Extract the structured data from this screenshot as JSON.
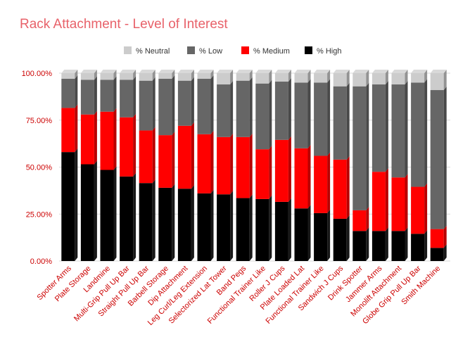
{
  "chart_data": {
    "type": "bar",
    "stacked": true,
    "style": "3d",
    "title": "Rack Attachment - Level of Interest",
    "xlabel": "",
    "ylabel": "",
    "ylim": [
      0,
      100
    ],
    "y_ticks": [
      "0.00%",
      "25.00%",
      "50.00%",
      "75.00%",
      "100.00%"
    ],
    "y_tick_values": [
      0,
      25,
      50,
      75,
      100
    ],
    "legend_position": "top-center",
    "categories": [
      "Spotter Arms",
      "Plate Storage",
      "Landmine",
      "Multi-Grip Pull Up Bar",
      "Straight Pull Up Bar",
      "Barbell Storage",
      "Dip Attachment",
      "Leg Curl/Leg Extension",
      "Selectorized Lat Tower",
      "Band Pegs",
      "Functional Trainer Like",
      "Roller J Cups",
      "Plate Loaded Lat",
      "Functional Trainer Like",
      "Sandwich J Cups",
      "Drink Spotter",
      "Jammer Arms",
      "Monolift Attachment",
      "Globe Grip Pull Up Bar",
      "Smith Machine"
    ],
    "series": [
      {
        "name": "% High",
        "color": "#000000",
        "values": [
          58,
          51.5,
          48.5,
          45,
          41.5,
          39,
          38.5,
          36,
          35.5,
          33.5,
          33,
          31.5,
          28,
          25.5,
          22.5,
          16,
          16,
          16,
          14.5,
          7
        ]
      },
      {
        "name": "% Medium",
        "color": "#ff0000",
        "values": [
          23.5,
          26.5,
          31,
          31.5,
          28,
          28,
          33.5,
          31.5,
          30.5,
          32.5,
          26.5,
          33,
          32,
          30.5,
          31.5,
          11,
          31.5,
          28.5,
          25,
          10
        ]
      },
      {
        "name": "% Low",
        "color": "#666666",
        "values": [
          15.5,
          18.5,
          17,
          20,
          26.5,
          30,
          24,
          29.5,
          28,
          30,
          35,
          31,
          35,
          39,
          39,
          66,
          46.5,
          49.5,
          55.5,
          74
        ]
      },
      {
        "name": "% Neutral",
        "color": "#cccccc",
        "values": [
          3,
          3.5,
          3.5,
          3.5,
          4,
          3,
          4,
          3,
          6,
          4,
          5.5,
          4.5,
          5,
          5,
          7,
          7,
          6,
          6,
          5,
          9
        ]
      }
    ],
    "legend_order": [
      "% Neutral",
      "% Low",
      "% Medium",
      "% High"
    ]
  }
}
